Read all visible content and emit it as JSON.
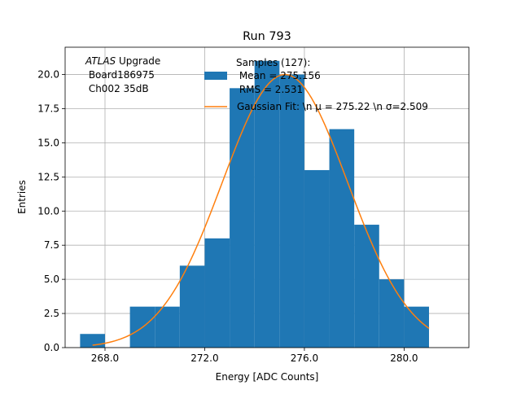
{
  "chart_data": {
    "type": "bar",
    "title": "Run 793",
    "xlabel": "Energy [ADC Counts]",
    "ylabel": "Entries",
    "xlim": [
      266.4,
      282.6
    ],
    "ylim": [
      0,
      22
    ],
    "grid": true,
    "x_ticks": [
      268,
      272,
      276,
      280
    ],
    "x_tick_labels": [
      "268.0",
      "272.0",
      "276.0",
      "280.0"
    ],
    "y_ticks": [
      0,
      2.5,
      5,
      7.5,
      10,
      12.5,
      15,
      17.5,
      20
    ],
    "y_tick_labels": [
      "0.0",
      "2.5",
      "5.0",
      "7.5",
      "10.0",
      "12.5",
      "15.0",
      "17.5",
      "20.0"
    ],
    "bins": [
      {
        "x0": 267,
        "x1": 268,
        "count": 1
      },
      {
        "x0": 268,
        "x1": 269,
        "count": 0
      },
      {
        "x0": 269,
        "x1": 270,
        "count": 3
      },
      {
        "x0": 270,
        "x1": 271,
        "count": 3
      },
      {
        "x0": 271,
        "x1": 272,
        "count": 6
      },
      {
        "x0": 272,
        "x1": 273,
        "count": 8
      },
      {
        "x0": 273,
        "x1": 274,
        "count": 19
      },
      {
        "x0": 274,
        "x1": 275,
        "count": 21
      },
      {
        "x0": 275,
        "x1": 276,
        "count": 20
      },
      {
        "x0": 276,
        "x1": 277,
        "count": 13
      },
      {
        "x0": 277,
        "x1": 278,
        "count": 16
      },
      {
        "x0": 278,
        "x1": 279,
        "count": 9
      },
      {
        "x0": 279,
        "x1": 280,
        "count": 5
      },
      {
        "x0": 280,
        "x1": 281,
        "count": 3
      }
    ],
    "fit": {
      "mu": 275.22,
      "sigma": 2.509,
      "amplitude": 20.0,
      "x_range": [
        267.5,
        281
      ]
    },
    "annotation": {
      "atlas": "ATLAS",
      "line1": " Upgrade",
      "line2": " Board186975",
      "line3": " Ch002 35dB"
    },
    "legend": {
      "placement": "top-right",
      "hist_lines": [
        "Samples (127):",
        " Mean = 275.156",
        " RMS = 2.531"
      ],
      "fit_label": "Gaussian Fit: \\n μ = 275.22 \\n σ=2.509"
    },
    "colors": {
      "hist": "#1f77b4",
      "fit": "#ff7f0e",
      "grid": "#b0b0b0"
    }
  }
}
